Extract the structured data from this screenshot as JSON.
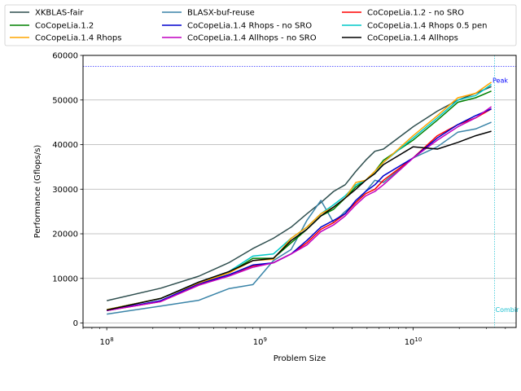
{
  "chart_data": {
    "type": "line",
    "xlabel": "Problem Size",
    "ylabel": "Performance (Gflops/s)",
    "xscale": "log",
    "xlim": [
      70000000,
      47000000000
    ],
    "ylim": [
      -1000,
      60000
    ],
    "yticks": [
      0,
      10000,
      20000,
      30000,
      40000,
      50000,
      60000
    ],
    "xticks": [
      {
        "value": 100000000,
        "base": "10",
        "exp": "8"
      },
      {
        "value": 1000000000,
        "base": "10",
        "exp": "9"
      },
      {
        "value": 10000000000,
        "base": "10",
        "exp": "10"
      }
    ],
    "grid": "horizontal",
    "legend_position": "top",
    "reference_lines": [
      {
        "orientation": "horizontal",
        "value": 57500,
        "label": "Peak",
        "color": "#0000ff"
      },
      {
        "orientation": "vertical",
        "value": 34000000000,
        "label": "Combir",
        "color": "#17becf"
      }
    ],
    "series": [
      {
        "name": "XKBLAS-fair",
        "color": "#2f4f4f",
        "x": [
          100000000,
          225000000,
          400000000,
          625000000,
          900000000,
          1225000000,
          1600000000,
          2025000000,
          2500000000,
          3025000000,
          3600000000,
          4225000000,
          4900000000,
          5625000000,
          6400000000,
          10000000000,
          14400000000,
          19600000000,
          25600000000,
          32400000000
        ],
        "y": [
          5000,
          7800,
          10500,
          13500,
          16700,
          19000,
          21500,
          24500,
          27000,
          29500,
          31000,
          34000,
          36500,
          38500,
          39000,
          44000,
          47500,
          50000,
          51500,
          53000
        ]
      },
      {
        "name": "BLASX-buf-reuse",
        "color": "#3a84a8",
        "x": [
          100000000,
          225000000,
          400000000,
          625000000,
          900000000,
          1225000000,
          1600000000,
          2025000000,
          2500000000,
          3025000000,
          3600000000,
          4225000000,
          4900000000,
          5625000000,
          6400000000,
          10000000000,
          14400000000,
          19600000000,
          25600000000,
          32400000000
        ],
        "y": [
          2000,
          3800,
          5100,
          7700,
          8600,
          14000,
          16500,
          23000,
          27500,
          22500,
          25000,
          27000,
          29500,
          32000,
          31500,
          37000,
          39500,
          42800,
          43500,
          45000
        ]
      },
      {
        "name": "CoCopeLia.1.2 - no SRO",
        "color": "#ff0000",
        "x": [
          100000000,
          225000000,
          400000000,
          625000000,
          900000000,
          1225000000,
          1600000000,
          2025000000,
          2500000000,
          3025000000,
          3600000000,
          4225000000,
          4900000000,
          5625000000,
          6400000000,
          10000000000,
          14400000000,
          19600000000,
          25600000000,
          32400000000
        ],
        "y": [
          2800,
          4800,
          8500,
          10800,
          12800,
          13500,
          15500,
          18000,
          21000,
          22500,
          24500,
          27000,
          29000,
          30000,
          32000,
          37000,
          42000,
          44500,
          46000,
          48000
        ]
      },
      {
        "name": "CoCopeLia.1.2",
        "color": "#008000",
        "x": [
          100000000,
          225000000,
          400000000,
          625000000,
          900000000,
          1225000000,
          1600000000,
          2025000000,
          2500000000,
          3025000000,
          3600000000,
          4225000000,
          4900000000,
          5625000000,
          6400000000,
          10000000000,
          14400000000,
          19600000000,
          25600000000,
          32400000000
        ],
        "y": [
          3000,
          5500,
          9000,
          11200,
          14500,
          14500,
          18000,
          21000,
          24000,
          25500,
          28000,
          30500,
          32000,
          34000,
          36500,
          41000,
          45500,
          49500,
          50500,
          52000
        ]
      },
      {
        "name": "CoCopeLia.1.4 Rhops - no SRO",
        "color": "#0000cd",
        "x": [
          100000000,
          225000000,
          400000000,
          625000000,
          900000000,
          1225000000,
          1600000000,
          2025000000,
          2500000000,
          3025000000,
          3600000000,
          4225000000,
          4900000000,
          5625000000,
          6400000000,
          10000000000,
          14400000000,
          19600000000,
          25600000000,
          32400000000
        ],
        "y": [
          2800,
          5000,
          8800,
          10800,
          13000,
          13500,
          15500,
          18500,
          21500,
          23000,
          24500,
          27500,
          29500,
          31000,
          33000,
          37000,
          41500,
          44500,
          46500,
          48000
        ]
      },
      {
        "name": "CoCopeLia.1.4 Rhops 0.5 pen",
        "color": "#00c8c8",
        "x": [
          100000000,
          225000000,
          400000000,
          625000000,
          900000000,
          1225000000,
          1600000000,
          2025000000,
          2500000000,
          3025000000,
          3600000000,
          4225000000,
          4900000000,
          5625000000,
          6400000000,
          10000000000,
          14400000000,
          19600000000,
          25600000000,
          32400000000
        ],
        "y": [
          3000,
          5500,
          9200,
          11500,
          15000,
          15500,
          19000,
          21500,
          24500,
          26500,
          28500,
          31000,
          32000,
          33500,
          36000,
          41500,
          46000,
          50000,
          51000,
          53500
        ]
      },
      {
        "name": "CoCopeLia.1.4 Rhops",
        "color": "#ffa500",
        "x": [
          100000000,
          225000000,
          400000000,
          625000000,
          900000000,
          1225000000,
          1600000000,
          2025000000,
          2500000000,
          3025000000,
          3600000000,
          4225000000,
          4900000000,
          5625000000,
          6400000000,
          10000000000,
          14400000000,
          19600000000,
          25600000000,
          32400000000
        ],
        "y": [
          3000,
          5500,
          9000,
          11200,
          14000,
          14300,
          19000,
          21500,
          24500,
          26000,
          28000,
          31500,
          32000,
          34000,
          36000,
          42000,
          46500,
          50500,
          51500,
          54000
        ]
      },
      {
        "name": "CoCopeLia.1.4 Allhops - no SRO",
        "color": "#c000c0",
        "x": [
          100000000,
          225000000,
          400000000,
          625000000,
          900000000,
          1225000000,
          1600000000,
          2025000000,
          2500000000,
          3025000000,
          3600000000,
          4225000000,
          4900000000,
          5625000000,
          6400000000,
          10000000000,
          14400000000,
          19600000000,
          25600000000,
          32400000000
        ],
        "y": [
          2800,
          4800,
          8500,
          10500,
          12500,
          13500,
          15500,
          17500,
          20500,
          22000,
          24000,
          26500,
          28500,
          29500,
          31000,
          37000,
          41000,
          44000,
          46000,
          48500
        ]
      },
      {
        "name": "CoCopeLia.1.4 Allhops",
        "color": "#000000",
        "x": [
          100000000,
          225000000,
          400000000,
          625000000,
          900000000,
          1225000000,
          1600000000,
          2025000000,
          2500000000,
          3025000000,
          3600000000,
          4225000000,
          4900000000,
          5625000000,
          6400000000,
          10000000000,
          14400000000,
          19600000000,
          25600000000,
          32400000000
        ],
        "y": [
          2900,
          5500,
          9200,
          11500,
          14000,
          14500,
          18500,
          21000,
          24000,
          26000,
          28000,
          30000,
          32000,
          33500,
          35500,
          39500,
          39000,
          40500,
          42000,
          43000
        ]
      }
    ]
  }
}
